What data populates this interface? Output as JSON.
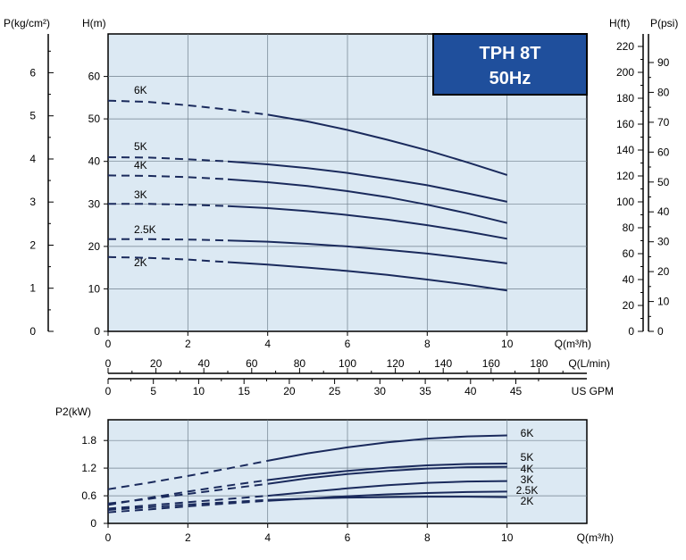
{
  "chart_data": [
    {
      "type": "line",
      "badge": {
        "line1": "TPH 8T",
        "line2": "50Hz",
        "color": "#1f4f9c"
      },
      "plot_bg": "#dce9f3",
      "line_color": "#1a2a5c",
      "left_axes": [
        {
          "label": "P(kg/cm²)",
          "ticks": [
            "0",
            "1",
            "2",
            "3",
            "4",
            "5",
            "6"
          ]
        },
        {
          "label": "H(m)",
          "ticks": [
            "0",
            "10",
            "20",
            "30",
            "40",
            "50",
            "60"
          ],
          "ylim": [
            0,
            70
          ]
        }
      ],
      "right_axes": [
        {
          "label": "H(ft)",
          "ticks": [
            "0",
            "20",
            "40",
            "60",
            "80",
            "100",
            "120",
            "140",
            "160",
            "180",
            "200",
            "220"
          ]
        },
        {
          "label": "P(psi)",
          "ticks": [
            "0",
            "10",
            "20",
            "30",
            "40",
            "50",
            "60",
            "70",
            "80",
            "90"
          ]
        }
      ],
      "x_axes": [
        {
          "label": "Q(m³/h)",
          "ticks": [
            "0",
            "2",
            "4",
            "6",
            "8",
            "10"
          ],
          "xlim": [
            0,
            12
          ]
        },
        {
          "label": "Q(L/min)",
          "ticks": [
            "0",
            "20",
            "40",
            "60",
            "80",
            "100",
            "120",
            "140",
            "160",
            "180"
          ]
        },
        {
          "label": "US GPM",
          "ticks": [
            "0",
            "5",
            "10",
            "15",
            "20",
            "25",
            "30",
            "35",
            "40",
            "45"
          ]
        }
      ],
      "series": [
        {
          "name": "6K",
          "dash_until": 4,
          "x": [
            0,
            1,
            2,
            3,
            4,
            5,
            6,
            7,
            8,
            9,
            10
          ],
          "y": [
            54.3,
            54.0,
            53.2,
            52.2,
            51.0,
            49.4,
            47.4,
            45.1,
            42.6,
            39.8,
            36.8
          ]
        },
        {
          "name": "5K",
          "dash_until": 3,
          "x": [
            0,
            1,
            2,
            3,
            4,
            5,
            6,
            7,
            8,
            9,
            10
          ],
          "y": [
            41.0,
            40.9,
            40.5,
            40.0,
            39.3,
            38.4,
            37.3,
            35.9,
            34.4,
            32.5,
            30.5
          ]
        },
        {
          "name": "4K",
          "dash_until": 3,
          "x": [
            0,
            1,
            2,
            3,
            4,
            5,
            6,
            7,
            8,
            9,
            10
          ],
          "y": [
            36.7,
            36.6,
            36.3,
            35.8,
            35.1,
            34.2,
            33.0,
            31.6,
            29.8,
            27.8,
            25.5
          ]
        },
        {
          "name": "3K",
          "dash_until": 3,
          "x": [
            0,
            1,
            2,
            3,
            4,
            5,
            6,
            7,
            8,
            9,
            10
          ],
          "y": [
            30.0,
            30.0,
            29.8,
            29.5,
            29.0,
            28.3,
            27.4,
            26.3,
            25.0,
            23.5,
            21.8
          ]
        },
        {
          "name": "2.5K",
          "dash_until": 3,
          "x": [
            0,
            1,
            2,
            3,
            4,
            5,
            6,
            7,
            8,
            9,
            10
          ],
          "y": [
            21.7,
            21.7,
            21.6,
            21.4,
            21.1,
            20.6,
            20.0,
            19.2,
            18.3,
            17.2,
            16.0
          ]
        },
        {
          "name": "2K",
          "dash_until": 3,
          "x": [
            0,
            1,
            2,
            3,
            4,
            5,
            6,
            7,
            8,
            9,
            10
          ],
          "y": [
            17.5,
            17.3,
            16.9,
            16.3,
            15.7,
            15.0,
            14.2,
            13.3,
            12.2,
            11.0,
            9.6
          ]
        }
      ]
    },
    {
      "type": "line",
      "plot_bg": "#dce9f3",
      "line_color": "#1a2a5c",
      "ylabel": "P2(kW)",
      "y_ticks": [
        "0",
        "0.6",
        "1.2",
        "1.8"
      ],
      "ylim": [
        0,
        2.25
      ],
      "xlabel": "Q(m³/h)",
      "x_ticks": [
        "0",
        "2",
        "4",
        "6",
        "8",
        "10"
      ],
      "xlim": [
        0,
        12
      ],
      "series": [
        {
          "name": "6K",
          "dash_until": 4,
          "x": [
            0,
            1,
            2,
            3,
            4,
            5,
            6,
            7,
            8,
            9,
            10
          ],
          "y": [
            0.74,
            0.88,
            1.03,
            1.19,
            1.36,
            1.52,
            1.65,
            1.76,
            1.84,
            1.89,
            1.91
          ]
        },
        {
          "name": "5K",
          "dash_until": 4,
          "x": [
            0,
            1,
            2,
            3,
            4,
            5,
            6,
            7,
            8,
            9,
            10
          ],
          "y": [
            0.4,
            0.55,
            0.69,
            0.82,
            0.94,
            1.05,
            1.14,
            1.21,
            1.26,
            1.29,
            1.3
          ]
        },
        {
          "name": "4K",
          "dash_until": 4,
          "x": [
            0,
            1,
            2,
            3,
            4,
            5,
            6,
            7,
            8,
            9,
            10
          ],
          "y": [
            0.43,
            0.53,
            0.64,
            0.75,
            0.86,
            0.98,
            1.07,
            1.14,
            1.19,
            1.22,
            1.23
          ]
        },
        {
          "name": "3K",
          "dash_until": 4,
          "x": [
            0,
            1,
            2,
            3,
            4,
            5,
            6,
            7,
            8,
            9,
            10
          ],
          "y": [
            0.32,
            0.39,
            0.46,
            0.53,
            0.6,
            0.68,
            0.76,
            0.83,
            0.88,
            0.91,
            0.92
          ]
        },
        {
          "name": "2.5K",
          "dash_until": 4,
          "x": [
            0,
            1,
            2,
            3,
            4,
            5,
            6,
            7,
            8,
            9,
            10
          ],
          "y": [
            0.24,
            0.3,
            0.37,
            0.43,
            0.49,
            0.54,
            0.59,
            0.63,
            0.66,
            0.68,
            0.69
          ]
        },
        {
          "name": "2K",
          "dash_until": 4,
          "x": [
            0,
            1,
            2,
            3,
            4,
            5,
            6,
            7,
            8,
            9,
            10
          ],
          "y": [
            0.29,
            0.35,
            0.41,
            0.46,
            0.51,
            0.54,
            0.56,
            0.57,
            0.58,
            0.58,
            0.57
          ]
        }
      ]
    }
  ]
}
